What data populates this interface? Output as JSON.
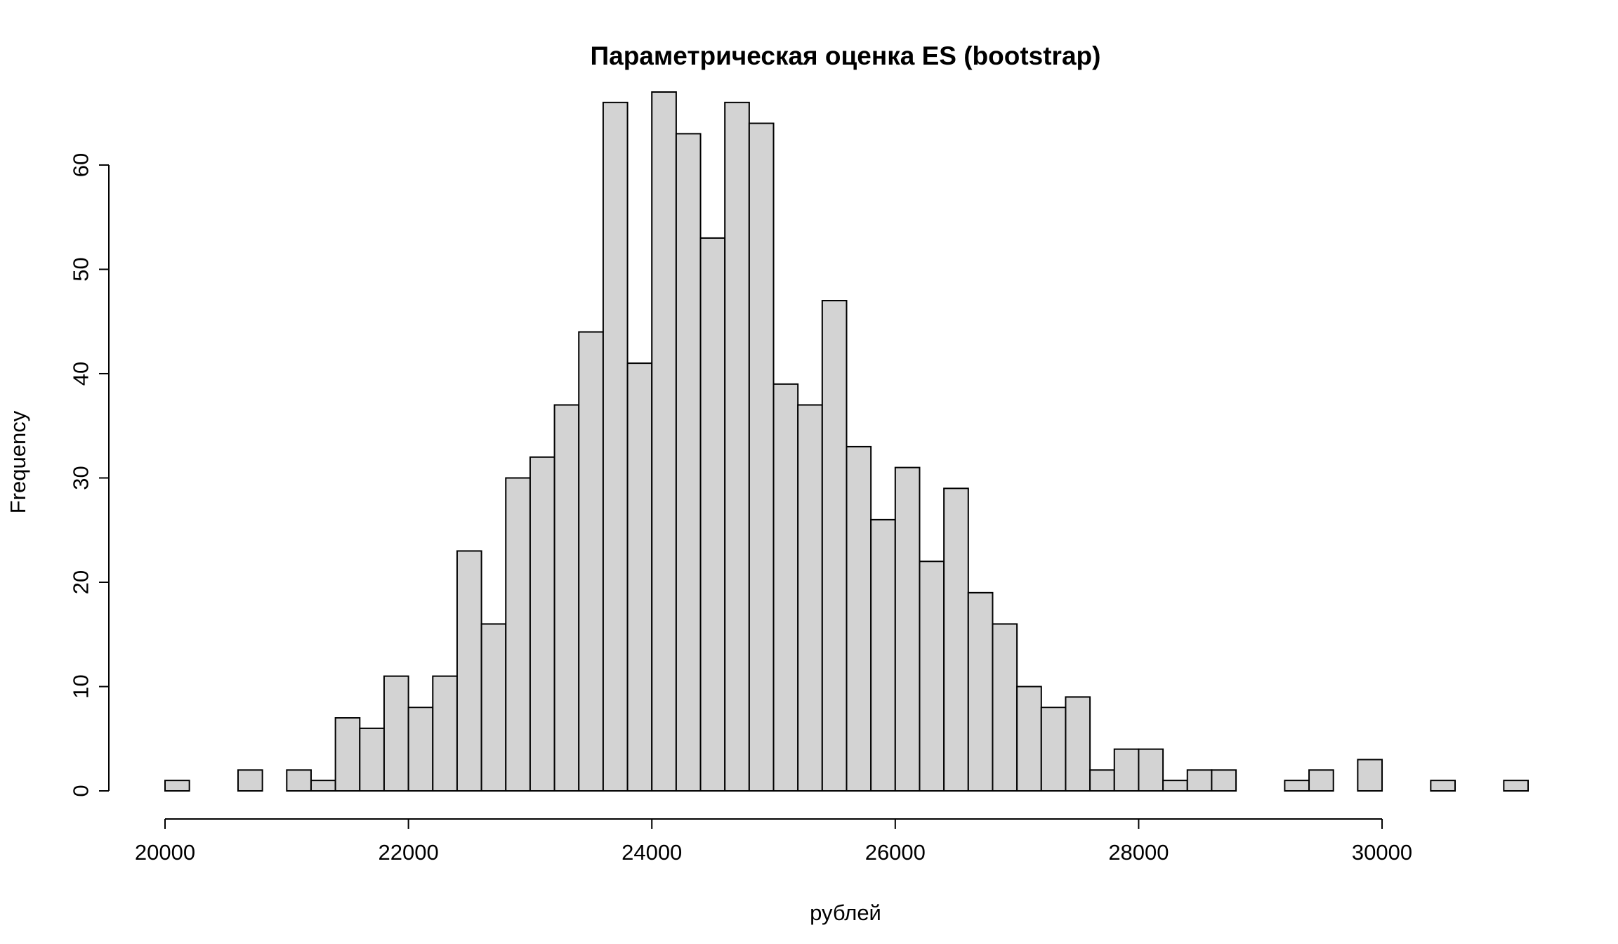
{
  "chart_data": {
    "type": "bar",
    "title": "Параметрическая оценка  ES (bootstrap)",
    "xlabel": "рублей",
    "ylabel": "Frequency",
    "bin_start": 20000,
    "bin_width": 200,
    "counts": [
      1,
      0,
      0,
      2,
      0,
      2,
      1,
      7,
      6,
      11,
      8,
      11,
      23,
      16,
      30,
      32,
      37,
      44,
      66,
      41,
      67,
      63,
      53,
      66,
      64,
      39,
      37,
      47,
      33,
      26,
      31,
      22,
      29,
      19,
      16,
      10,
      8,
      9,
      2,
      4,
      4,
      1,
      2,
      2,
      0,
      0,
      1,
      2,
      0,
      3,
      0,
      0,
      1,
      0,
      0,
      1
    ],
    "x_ticks": [
      20000,
      22000,
      24000,
      26000,
      28000,
      30000
    ],
    "x_tick_labels": [
      "20000",
      "22000",
      "24000",
      "26000",
      "28000",
      "30000"
    ],
    "y_ticks": [
      0,
      10,
      20,
      30,
      40,
      50,
      60
    ],
    "y_tick_labels": [
      "0",
      "10",
      "20",
      "30",
      "40",
      "50",
      "60"
    ],
    "xlim": [
      20000,
      31200
    ],
    "ylim": [
      0,
      67
    ],
    "bar_color": "#d3d3d3",
    "grid": false,
    "legend": "none"
  }
}
